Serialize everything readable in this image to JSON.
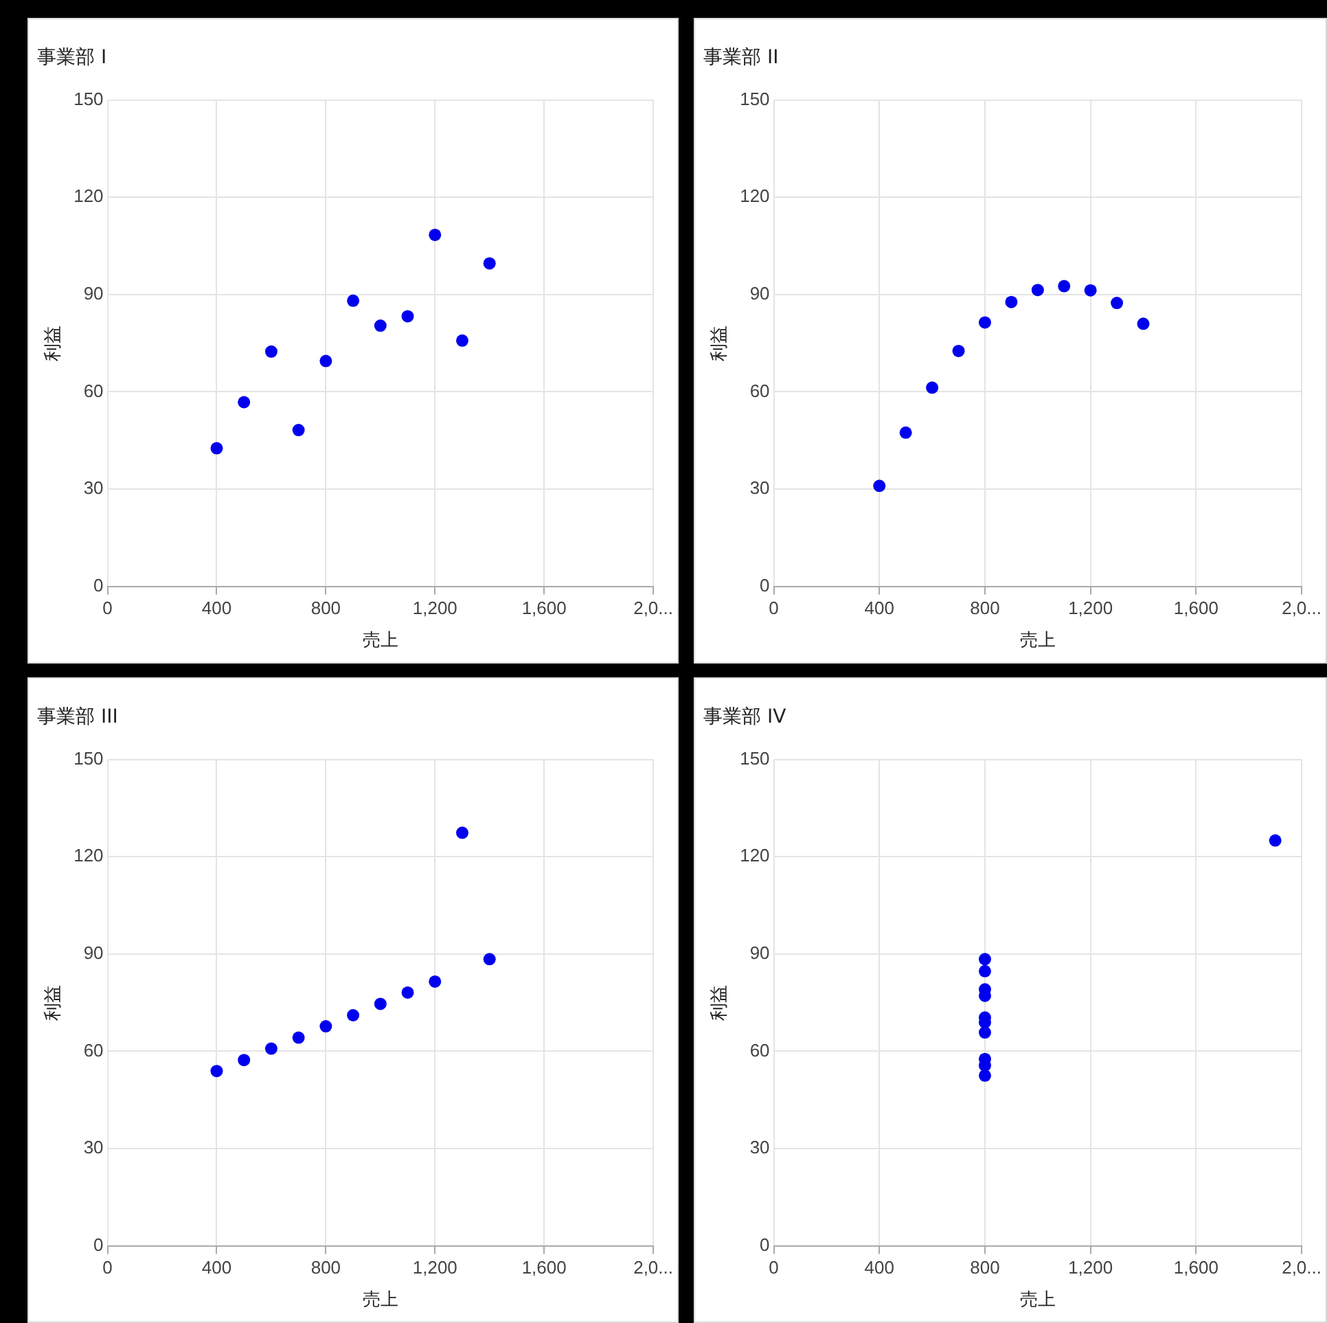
{
  "chart_data": [
    {
      "type": "scatter",
      "title": "事業部 I",
      "xlabel": "売上",
      "ylabel": "利益",
      "marker": "circle",
      "grid": true,
      "legend": false,
      "xlim": [
        0,
        2000
      ],
      "xticks": [
        0,
        400,
        800,
        {
          "value": 1200,
          "label": "1,200"
        },
        {
          "value": 1600,
          "label": "1,600"
        },
        {
          "value": 2000,
          "label": "2,0..."
        }
      ],
      "ylim": [
        0,
        150
      ],
      "yticks": [
        0,
        30,
        60,
        90,
        120,
        150
      ],
      "series": [
        {
          "color": "#0000ee",
          "x": [
            1000,
            800,
            1300,
            900,
            1100,
            1400,
            600,
            400,
            1200,
            700,
            500
          ],
          "values": [
            80.4,
            69.5,
            75.8,
            88.1,
            83.3,
            99.6,
            72.4,
            42.6,
            108.4,
            48.2,
            56.8
          ]
        }
      ]
    },
    {
      "type": "scatter",
      "title": "事業部 II",
      "xlabel": "売上",
      "ylabel": "利益",
      "marker": "circle",
      "grid": true,
      "legend": false,
      "xlim": [
        0,
        2000
      ],
      "xticks": [
        0,
        400,
        800,
        {
          "value": 1200,
          "label": "1,200"
        },
        {
          "value": 1600,
          "label": "1,600"
        },
        {
          "value": 2000,
          "label": "2,0..."
        }
      ],
      "ylim": [
        0,
        150
      ],
      "yticks": [
        0,
        30,
        60,
        90,
        120,
        150
      ],
      "series": [
        {
          "color": "#0000ee",
          "x": [
            1000,
            800,
            1300,
            900,
            1100,
            1400,
            600,
            400,
            1200,
            700,
            500
          ],
          "values": [
            91.4,
            81.4,
            87.4,
            87.7,
            92.6,
            81.0,
            61.3,
            31.0,
            91.3,
            72.6,
            47.4
          ]
        }
      ]
    },
    {
      "type": "scatter",
      "title": "事業部 III",
      "xlabel": "売上",
      "ylabel": "利益",
      "marker": "circle",
      "grid": true,
      "legend": false,
      "xlim": [
        0,
        2000
      ],
      "xticks": [
        0,
        400,
        800,
        {
          "value": 1200,
          "label": "1,200"
        },
        {
          "value": 1600,
          "label": "1,600"
        },
        {
          "value": 2000,
          "label": "2,0..."
        }
      ],
      "ylim": [
        0,
        150
      ],
      "yticks": [
        0,
        30,
        60,
        90,
        120,
        150
      ],
      "series": [
        {
          "color": "#0000ee",
          "x": [
            1000,
            800,
            1300,
            900,
            1100,
            1400,
            600,
            400,
            1200,
            700,
            500
          ],
          "values": [
            74.6,
            67.7,
            127.4,
            71.1,
            78.1,
            88.4,
            60.8,
            53.9,
            81.5,
            64.2,
            57.3
          ]
        }
      ]
    },
    {
      "type": "scatter",
      "title": "事業部 IV",
      "xlabel": "売上",
      "ylabel": "利益",
      "marker": "circle",
      "grid": true,
      "legend": false,
      "xlim": [
        0,
        2000
      ],
      "xticks": [
        0,
        400,
        800,
        {
          "value": 1200,
          "label": "1,200"
        },
        {
          "value": 1600,
          "label": "1,600"
        },
        {
          "value": 2000,
          "label": "2,0..."
        }
      ],
      "ylim": [
        0,
        150
      ],
      "yticks": [
        0,
        30,
        60,
        90,
        120,
        150
      ],
      "series": [
        {
          "color": "#0000ee",
          "x": [
            800,
            800,
            800,
            800,
            800,
            800,
            800,
            1900,
            800,
            800,
            800
          ],
          "values": [
            65.8,
            57.6,
            77.1,
            88.4,
            84.7,
            70.4,
            52.5,
            125.0,
            55.6,
            79.1,
            68.9
          ]
        }
      ]
    }
  ]
}
